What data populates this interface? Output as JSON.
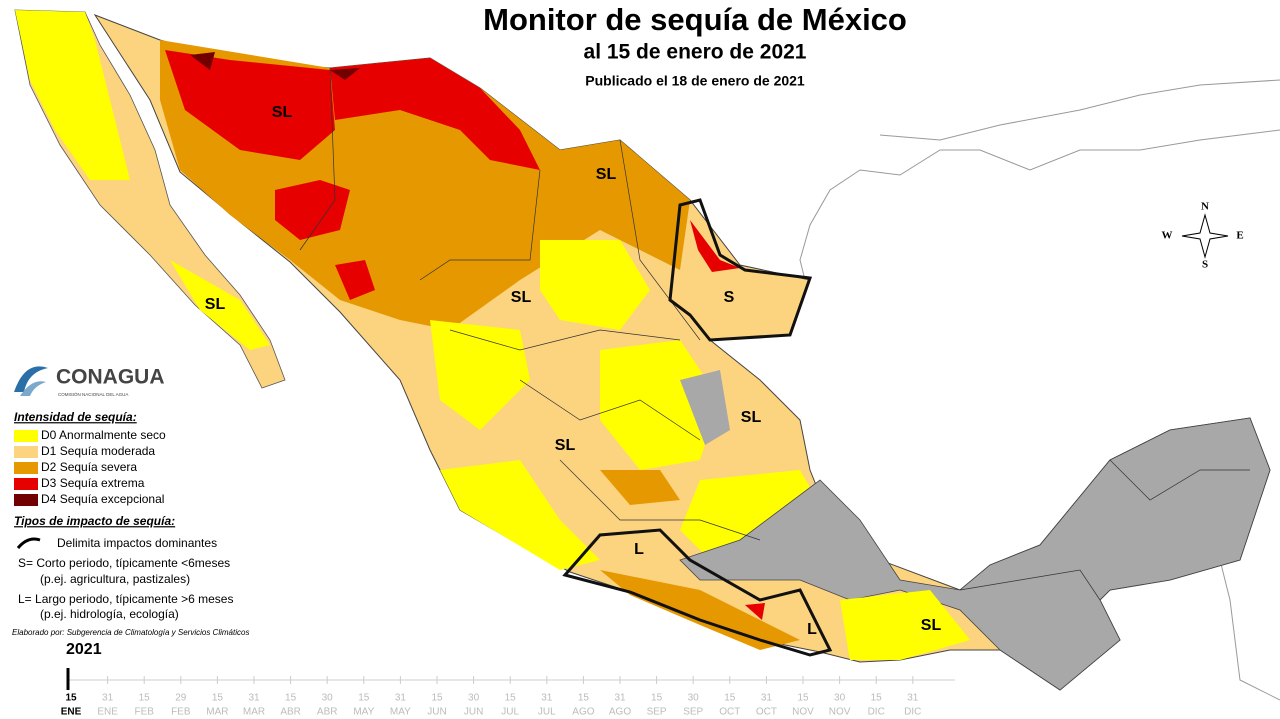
{
  "header": {
    "title": "Monitor de sequía de México",
    "subtitle": "al 15 de enero de 2021",
    "published": "Publicado el 18 de enero de 2021"
  },
  "map_labels": [
    "SL",
    "SL",
    "SL",
    "SL",
    "SL",
    "SL",
    "SL",
    "S",
    "L",
    "L"
  ],
  "compass": [
    "N",
    "W",
    "E",
    "S"
  ],
  "logo": {
    "name": "CONAGUA",
    "tagline": "COMISIÓN NACIONAL DEL AGUA"
  },
  "legend": {
    "intensity_title": "Intensidad de sequía:",
    "intensity": [
      {
        "code": "D0",
        "label": "Anormalmente seco",
        "color": "#ffff00"
      },
      {
        "code": "D1",
        "label": "Sequía moderada",
        "color": "#fcd37f"
      },
      {
        "code": "D2",
        "label": "Sequía severa",
        "color": "#e69800"
      },
      {
        "code": "D3",
        "label": "Sequía extrema",
        "color": "#e60000"
      },
      {
        "code": "D4",
        "label": "Sequía excepcional",
        "color": "#730000"
      }
    ],
    "impact_title": "Tipos de impacto de sequía:",
    "impact": [
      "Delimita impactos dominantes",
      "S= Corto periodo, típicamente <6meses",
      "(p.ej. agricultura, pastizales)",
      "L= Largo periodo, típicamente >6 meses",
      "(p.ej. hidrología, ecología)"
    ],
    "credit": "Elaborado por: Subgerencia de Climatología y Servicios Climáticos"
  },
  "timeline": {
    "year": "2021",
    "ticks": [
      {
        "day": "15",
        "month": "ENE"
      },
      {
        "day": "31",
        "month": "ENE"
      },
      {
        "day": "15",
        "month": "FEB"
      },
      {
        "day": "29",
        "month": "FEB"
      },
      {
        "day": "15",
        "month": "MAR"
      },
      {
        "day": "31",
        "month": "MAR"
      },
      {
        "day": "15",
        "month": "ABR"
      },
      {
        "day": "30",
        "month": "ABR"
      },
      {
        "day": "15",
        "month": "MAY"
      },
      {
        "day": "31",
        "month": "MAY"
      },
      {
        "day": "15",
        "month": "JUN"
      },
      {
        "day": "30",
        "month": "JUN"
      },
      {
        "day": "15",
        "month": "JUL"
      },
      {
        "day": "31",
        "month": "JUL"
      },
      {
        "day": "15",
        "month": "AGO"
      },
      {
        "day": "31",
        "month": "AGO"
      },
      {
        "day": "15",
        "month": "SEP"
      },
      {
        "day": "30",
        "month": "SEP"
      },
      {
        "day": "15",
        "month": "OCT"
      },
      {
        "day": "31",
        "month": "OCT"
      },
      {
        "day": "15",
        "month": "NOV"
      },
      {
        "day": "30",
        "month": "NOV"
      },
      {
        "day": "15",
        "month": "DIC"
      },
      {
        "day": "31",
        "month": "DIC"
      }
    ]
  }
}
